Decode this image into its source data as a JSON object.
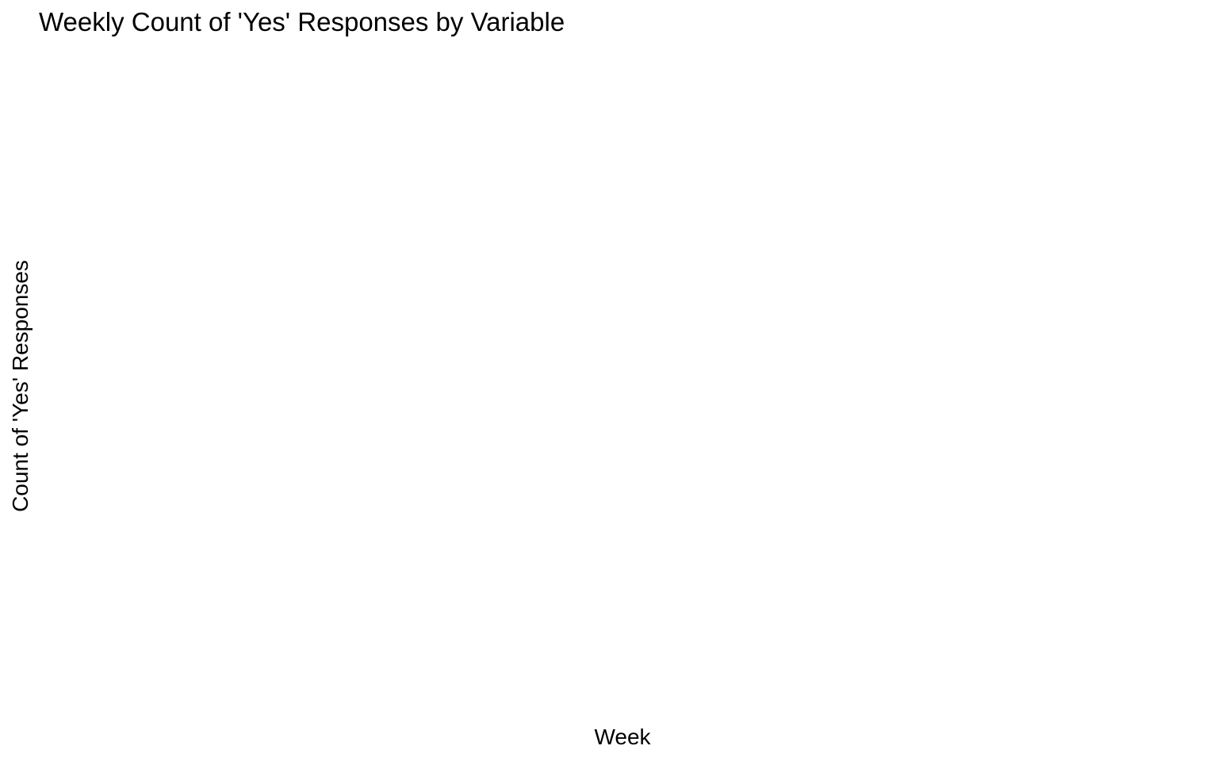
{
  "chart_data": {
    "type": "line",
    "title": "Weekly Count of 'Yes' Responses by Variable",
    "xlabel": "Week",
    "ylabel": "Count of 'Yes' Responses",
    "series": [],
    "grid": false,
    "legend": "none"
  }
}
